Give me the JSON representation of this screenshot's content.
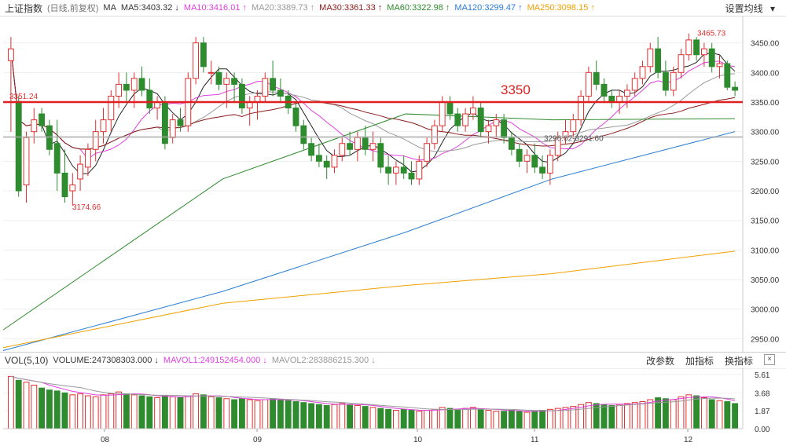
{
  "header": {
    "index_name": "上证指数",
    "mode": "(日线,前复权)",
    "ma_label": "MA",
    "ma": [
      {
        "label": "MA5:3403.32",
        "arrow": "↓",
        "color": "#333333"
      },
      {
        "label": "MA10:3416.01",
        "arrow": "↑",
        "color": "#e040e0"
      },
      {
        "label": "MA20:3389.73",
        "arrow": "↑",
        "color": "#999999"
      },
      {
        "label": "MA30:3361.33",
        "arrow": "↑",
        "color": "#8b1a1a"
      },
      {
        "label": "MA60:3322.98",
        "arrow": "↑",
        "color": "#2e8b2e"
      },
      {
        "label": "MA120:3299.47",
        "arrow": "↑",
        "color": "#2a7fd4"
      },
      {
        "label": "MA250:3098.15",
        "arrow": "↑",
        "color": "#f0a000"
      }
    ],
    "settings_label": "设置均线"
  },
  "volume_bar": {
    "label": "VOL(5,10)",
    "items": [
      {
        "label": "VOLUME:247308303.000",
        "arrow": "↓",
        "color": "#333333"
      },
      {
        "label": "MAVOL1:249152454.000",
        "arrow": "↓",
        "color": "#e040e0"
      },
      {
        "label": "MAVOL2:283886215.300",
        "arrow": "↓",
        "color": "#999999"
      }
    ],
    "tools": [
      "改参数",
      "加指标",
      "换指标"
    ],
    "close": "×"
  },
  "chart_data": {
    "type": "candlestick",
    "y_ticks": [
      "3450.00",
      "3400.00",
      "3350.00",
      "3300.00",
      "3250.00",
      "3200.00",
      "3150.00",
      "3100.00",
      "3050.00",
      "3000.00",
      "2950.00"
    ],
    "x_ticks": [
      "08",
      "09",
      "10",
      "11",
      "12"
    ],
    "ylim": [
      2928,
      3488
    ],
    "annotations": {
      "left_high": "3351.24",
      "low": "3174.66",
      "high": "3465.73",
      "range": "3296.62-3291.60",
      "line_label": "3350"
    },
    "horizontal_lines": [
      {
        "value": 3350,
        "color": "#e02020"
      },
      {
        "value": 3291,
        "color": "#aaaaaa"
      }
    ],
    "volume_ticks": [
      "5.61",
      "3.68",
      "1.87",
      "0.00"
    ],
    "volume_ylim": [
      0,
      6.0
    ],
    "candles": [
      [
        3420,
        3460,
        3300,
        3440
      ],
      [
        3351,
        3360,
        3190,
        3200
      ],
      [
        3210,
        3300,
        3180,
        3290
      ],
      [
        3300,
        3340,
        3280,
        3320
      ],
      [
        3330,
        3340,
        3300,
        3310
      ],
      [
        3310,
        3320,
        3260,
        3270
      ],
      [
        3280,
        3320,
        3200,
        3230
      ],
      [
        3230,
        3270,
        3180,
        3190
      ],
      [
        3200,
        3230,
        3175,
        3210
      ],
      [
        3220,
        3260,
        3200,
        3245
      ],
      [
        3240,
        3280,
        3225,
        3270
      ],
      [
        3270,
        3320,
        3250,
        3300
      ],
      [
        3300,
        3340,
        3280,
        3320
      ],
      [
        3320,
        3370,
        3300,
        3360
      ],
      [
        3360,
        3400,
        3340,
        3380
      ],
      [
        3380,
        3400,
        3350,
        3370
      ],
      [
        3370,
        3400,
        3340,
        3390
      ],
      [
        3390,
        3410,
        3360,
        3370
      ],
      [
        3370,
        3390,
        3330,
        3340
      ],
      [
        3340,
        3360,
        3320,
        3350
      ],
      [
        3350,
        3360,
        3270,
        3280
      ],
      [
        3290,
        3330,
        3280,
        3320
      ],
      [
        3320,
        3340,
        3300,
        3310
      ],
      [
        3310,
        3400,
        3300,
        3390
      ],
      [
        3390,
        3460,
        3380,
        3450
      ],
      [
        3450,
        3460,
        3400,
        3410
      ],
      [
        3400,
        3420,
        3380,
        3400
      ],
      [
        3400,
        3410,
        3370,
        3380
      ],
      [
        3380,
        3400,
        3340,
        3390
      ],
      [
        3390,
        3400,
        3350,
        3380
      ],
      [
        3380,
        3390,
        3330,
        3340
      ],
      [
        3340,
        3360,
        3310,
        3350
      ],
      [
        3350,
        3370,
        3320,
        3360
      ],
      [
        3360,
        3400,
        3350,
        3390
      ],
      [
        3390,
        3420,
        3360,
        3370
      ],
      [
        3370,
        3390,
        3350,
        3360
      ],
      [
        3360,
        3370,
        3330,
        3340
      ],
      [
        3340,
        3350,
        3300,
        3310
      ],
      [
        3310,
        3320,
        3270,
        3280
      ],
      [
        3280,
        3290,
        3250,
        3260
      ],
      [
        3260,
        3280,
        3240,
        3250
      ],
      [
        3250,
        3260,
        3220,
        3240
      ],
      [
        3240,
        3270,
        3230,
        3260
      ],
      [
        3260,
        3290,
        3250,
        3280
      ],
      [
        3280,
        3300,
        3260,
        3270
      ],
      [
        3270,
        3300,
        3250,
        3290
      ],
      [
        3290,
        3310,
        3260,
        3270
      ],
      [
        3270,
        3300,
        3250,
        3280
      ],
      [
        3280,
        3290,
        3230,
        3240
      ],
      [
        3240,
        3260,
        3210,
        3230
      ],
      [
        3230,
        3250,
        3210,
        3240
      ],
      [
        3240,
        3260,
        3220,
        3230
      ],
      [
        3230,
        3250,
        3210,
        3220
      ],
      [
        3220,
        3260,
        3210,
        3250
      ],
      [
        3250,
        3290,
        3240,
        3280
      ],
      [
        3280,
        3320,
        3270,
        3310
      ],
      [
        3310,
        3360,
        3300,
        3350
      ],
      [
        3350,
        3360,
        3320,
        3330
      ],
      [
        3330,
        3340,
        3300,
        3310
      ],
      [
        3310,
        3340,
        3300,
        3330
      ],
      [
        3330,
        3360,
        3320,
        3340
      ],
      [
        3340,
        3350,
        3290,
        3300
      ],
      [
        3300,
        3320,
        3280,
        3310
      ],
      [
        3310,
        3330,
        3290,
        3320
      ],
      [
        3320,
        3330,
        3280,
        3290
      ],
      [
        3290,
        3300,
        3260,
        3270
      ],
      [
        3270,
        3280,
        3240,
        3250
      ],
      [
        3250,
        3270,
        3230,
        3260
      ],
      [
        3260,
        3280,
        3230,
        3240
      ],
      [
        3240,
        3260,
        3220,
        3230
      ],
      [
        3230,
        3270,
        3210,
        3260
      ],
      [
        3260,
        3300,
        3250,
        3290
      ],
      [
        3290,
        3320,
        3280,
        3300
      ],
      [
        3300,
        3330,
        3290,
        3320
      ],
      [
        3320,
        3370,
        3310,
        3360
      ],
      [
        3360,
        3410,
        3350,
        3400
      ],
      [
        3400,
        3420,
        3370,
        3380
      ],
      [
        3380,
        3390,
        3350,
        3360
      ],
      [
        3360,
        3370,
        3340,
        3350
      ],
      [
        3350,
        3370,
        3330,
        3360
      ],
      [
        3360,
        3380,
        3340,
        3370
      ],
      [
        3370,
        3400,
        3360,
        3390
      ],
      [
        3390,
        3420,
        3380,
        3410
      ],
      [
        3410,
        3450,
        3400,
        3440
      ],
      [
        3440,
        3460,
        3390,
        3400
      ],
      [
        3400,
        3420,
        3360,
        3370
      ],
      [
        3370,
        3410,
        3360,
        3400
      ],
      [
        3400,
        3440,
        3390,
        3430
      ],
      [
        3430,
        3466,
        3420,
        3455
      ],
      [
        3455,
        3460,
        3420,
        3430
      ],
      [
        3430,
        3450,
        3410,
        3440
      ],
      [
        3440,
        3450,
        3400,
        3410
      ],
      [
        3410,
        3430,
        3390,
        3415
      ],
      [
        3415,
        3420,
        3370,
        3375
      ],
      [
        3375,
        3385,
        3360,
        3370
      ]
    ],
    "volumes": [
      5.4,
      5.0,
      4.8,
      4.5,
      4.2,
      4.0,
      3.9,
      3.7,
      3.5,
      3.6,
      3.4,
      3.3,
      3.5,
      3.6,
      3.8,
      3.6,
      3.5,
      3.4,
      3.3,
      3.2,
      3.4,
      3.3,
      3.2,
      3.4,
      3.6,
      3.5,
      3.3,
      3.2,
      3.1,
      3.0,
      3.1,
      3.0,
      2.9,
      3.0,
      3.1,
      3.0,
      2.9,
      2.8,
      2.7,
      2.6,
      2.5,
      2.4,
      2.5,
      2.6,
      2.5,
      2.4,
      2.3,
      2.2,
      2.1,
      2.0,
      1.9,
      2.0,
      1.9,
      1.8,
      1.9,
      2.0,
      2.2,
      2.1,
      2.0,
      2.1,
      2.2,
      2.0,
      1.9,
      1.8,
      1.8,
      1.9,
      1.8,
      1.7,
      1.8,
      1.9,
      2.0,
      2.1,
      2.2,
      2.3,
      2.5,
      2.7,
      2.6,
      2.5,
      2.4,
      2.5,
      2.6,
      2.7,
      2.8,
      3.0,
      3.2,
      3.1,
      3.0,
      3.3,
      3.5,
      3.4,
      3.2,
      3.0,
      2.9,
      2.8,
      2.6
    ]
  }
}
